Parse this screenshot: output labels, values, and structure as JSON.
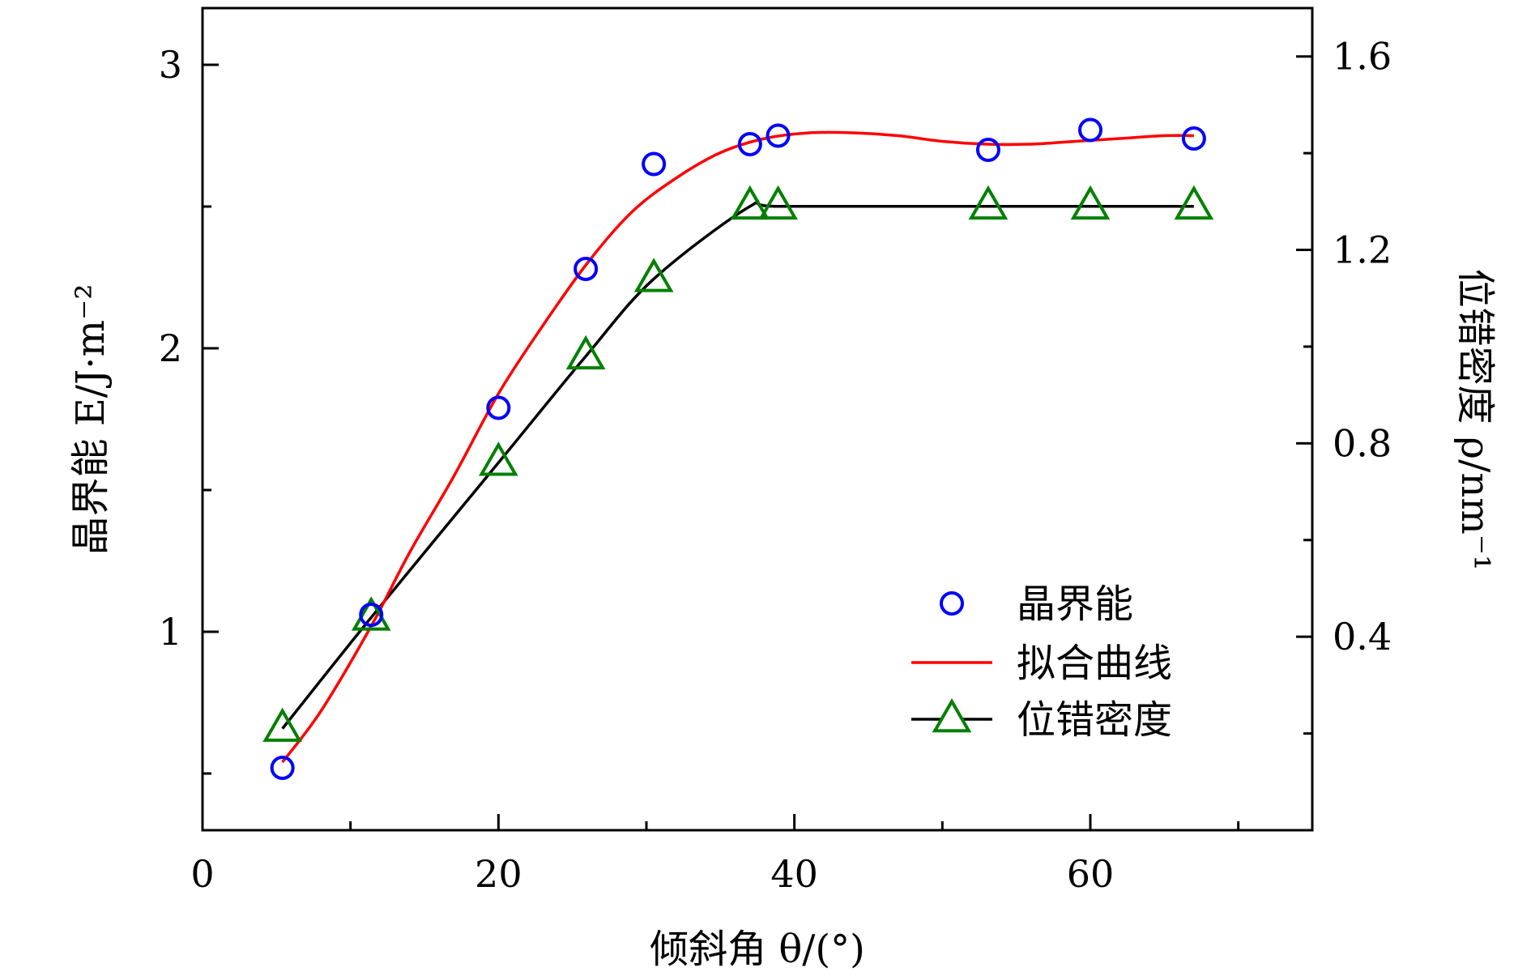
{
  "chart_data": {
    "type": "scatter",
    "xlabel": "倾斜角 θ/(°)",
    "ylabel_left": "晶界能 E/J·m⁻²",
    "ylabel_right": "位错密度 ρ/nm⁻¹",
    "xlim": [
      0,
      75
    ],
    "ylim_left": [
      0.3,
      3.2
    ],
    "ylim_right": [
      0,
      1.7
    ],
    "x_ticks": [
      0,
      20,
      40,
      60
    ],
    "y_left_ticks": [
      1,
      2,
      3
    ],
    "y_right_ticks": [
      0.4,
      0.8,
      1.2,
      1.6
    ],
    "x_tick_labels": [
      "0",
      "20",
      "40",
      "60"
    ],
    "y_left_tick_labels": [
      "1",
      "2",
      "3"
    ],
    "y_right_tick_labels": [
      "0.4",
      "0.8",
      "1.2",
      "1.6"
    ],
    "legend_position": "bottom-right",
    "legend": [
      "晶界能",
      "拟合曲线",
      "位错密度"
    ],
    "series": [
      {
        "name": "晶界能",
        "axis": "left",
        "marker": "circle",
        "color": "#0000ff",
        "x": [
          5.4,
          11.4,
          20.0,
          25.9,
          30.5,
          37.0,
          38.9,
          53.1,
          60.0,
          67.0
        ],
        "y": [
          0.52,
          1.06,
          1.79,
          2.28,
          2.65,
          2.72,
          2.75,
          2.7,
          2.77,
          2.74
        ]
      },
      {
        "name": "拟合曲线",
        "axis": "left",
        "marker": "none",
        "color": "#ff0000",
        "x": [
          5.4,
          8,
          11.4,
          14,
          17,
          20,
          23,
          26,
          29,
          32,
          35,
          38,
          41,
          44,
          47,
          50,
          53,
          56,
          59,
          62,
          65,
          67
        ],
        "y": [
          0.54,
          0.72,
          1.02,
          1.28,
          1.55,
          1.84,
          2.08,
          2.3,
          2.48,
          2.6,
          2.69,
          2.74,
          2.76,
          2.76,
          2.75,
          2.73,
          2.72,
          2.72,
          2.73,
          2.74,
          2.75,
          2.75
        ]
      },
      {
        "name": "位错密度",
        "axis": "right",
        "marker": "triangle",
        "color": "#008000",
        "line_color": "#000000",
        "x": [
          5.4,
          11.4,
          20.0,
          25.9,
          30.5,
          37.0,
          38.9,
          53.1,
          60.0,
          67.0
        ],
        "y": [
          0.21,
          0.44,
          0.76,
          0.98,
          1.14,
          1.29,
          1.29,
          1.29,
          1.29,
          1.29
        ]
      }
    ]
  }
}
